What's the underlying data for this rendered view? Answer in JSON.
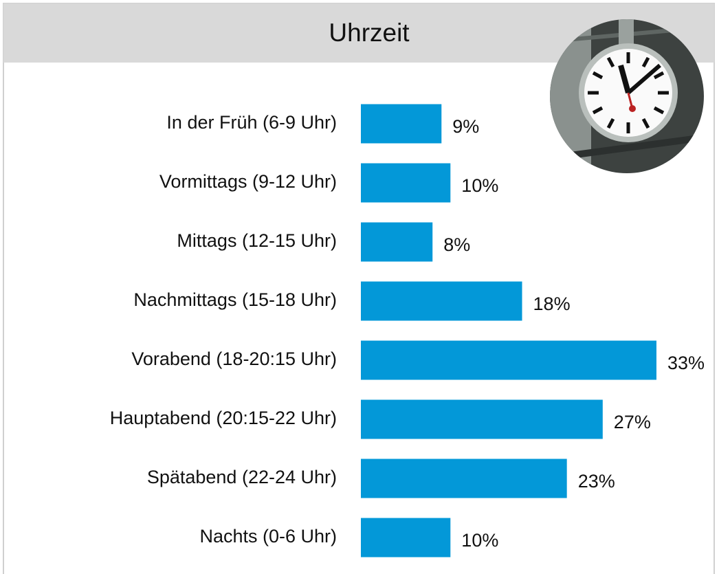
{
  "chart_data": {
    "type": "bar",
    "orientation": "horizontal",
    "title": "Uhrzeit",
    "categories": [
      "In der Früh (6-9 Uhr)",
      "Vormittags (9-12 Uhr)",
      "Mittags (12-15 Uhr)",
      "Nachmittags (15-18 Uhr)",
      "Vorabend (18-20:15 Uhr)",
      "Hauptabend (20:15-22 Uhr)",
      "Spätabend (22-24 Uhr)",
      "Nachts (0-6 Uhr)"
    ],
    "values": [
      9,
      10,
      8,
      18,
      33,
      27,
      23,
      10
    ],
    "value_labels": [
      "9%",
      "10%",
      "8%",
      "18%",
      "33%",
      "27%",
      "23%",
      "10%"
    ],
    "color": "#0398d8"
  }
}
